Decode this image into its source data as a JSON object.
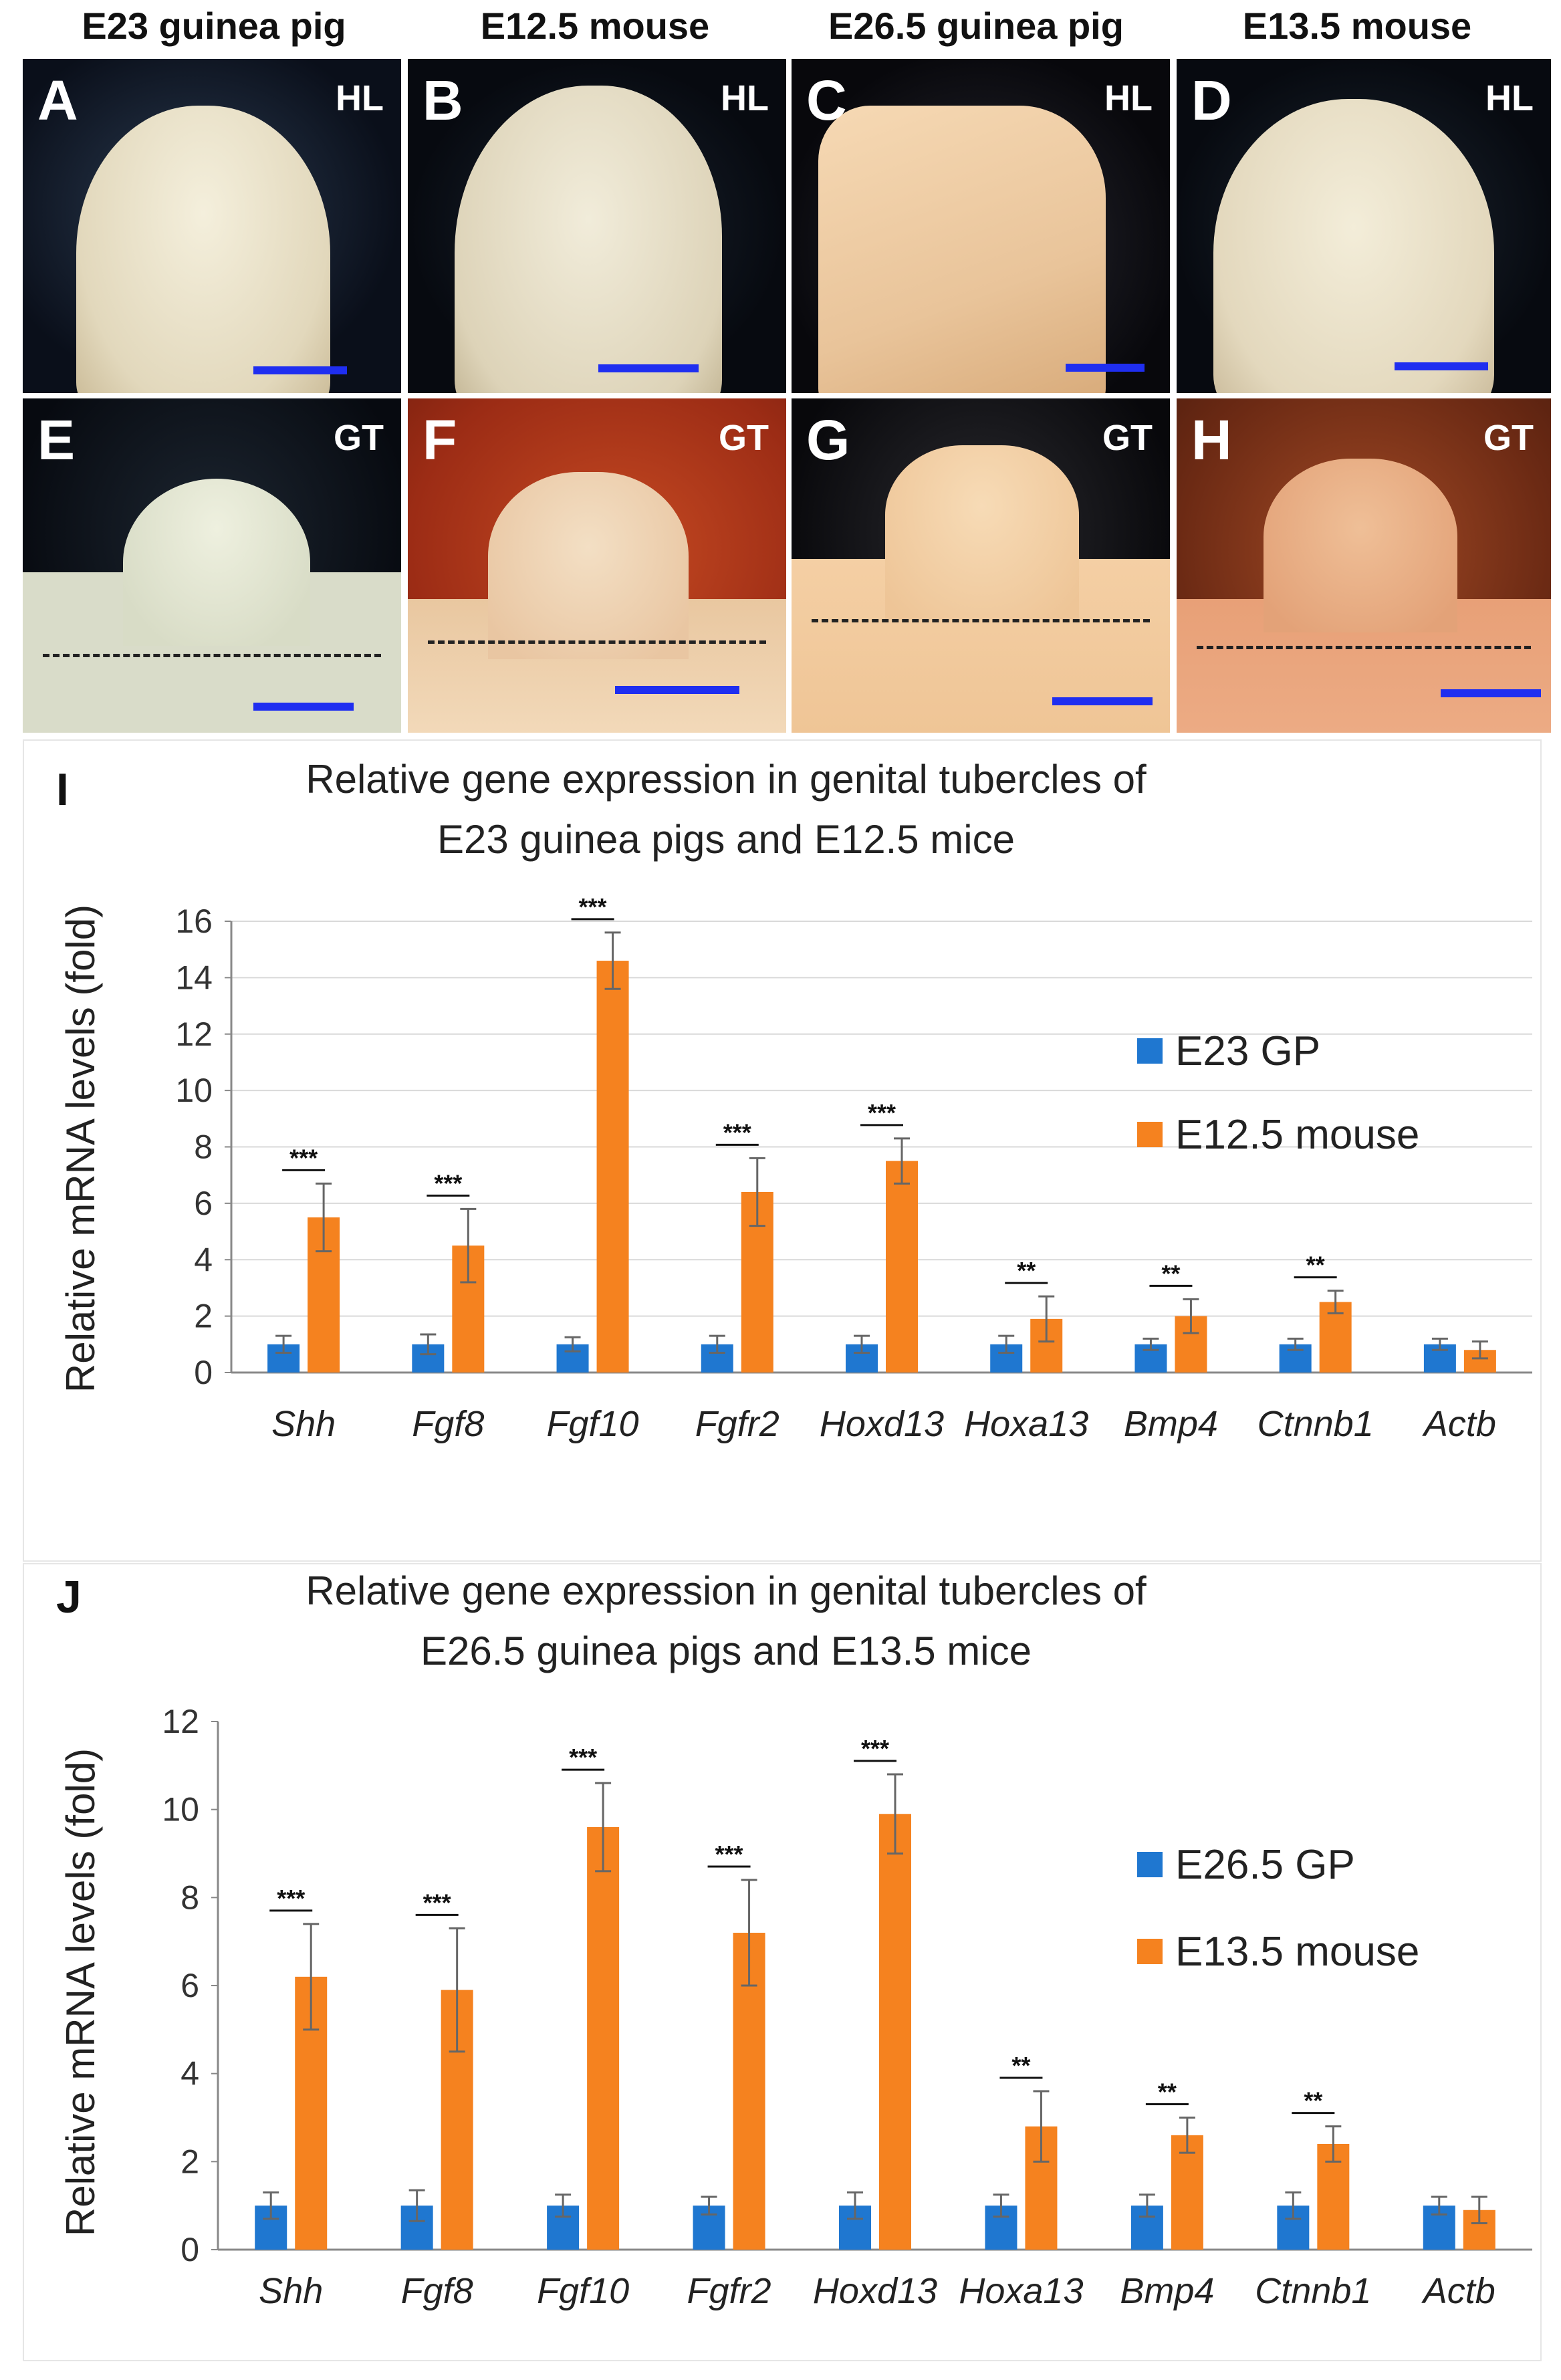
{
  "columns": [
    "E23 guinea pig",
    "E12.5 mouse",
    "E26.5 guinea pig",
    "E13.5 mouse"
  ],
  "panels": [
    {
      "letter": "A",
      "tag": "HL"
    },
    {
      "letter": "B",
      "tag": "HL"
    },
    {
      "letter": "C",
      "tag": "HL"
    },
    {
      "letter": "D",
      "tag": "HL"
    },
    {
      "letter": "E",
      "tag": "GT"
    },
    {
      "letter": "F",
      "tag": "GT"
    },
    {
      "letter": "G",
      "tag": "GT"
    },
    {
      "letter": "H",
      "tag": "GT"
    }
  ],
  "colors": {
    "gp": "#1f77d0",
    "mouse": "#f5821f",
    "scale_bar": "#1f2ef0"
  },
  "chart_data": [
    {
      "type": "bar",
      "panel": "I",
      "title": [
        "Relative gene expression in genital tubercles of",
        "E23 guinea pigs and E12.5 mice"
      ],
      "ylabel": "Relative mRNA levels (fold)",
      "ylim": [
        0,
        16
      ],
      "yticks": [
        0,
        2,
        4,
        6,
        8,
        10,
        12,
        14,
        16
      ],
      "grid": true,
      "legend": "right",
      "categories": [
        "Shh",
        "Fgf8",
        "Fgf10",
        "Fgfr2",
        "Hoxd13",
        "Hoxa13",
        "Bmp4",
        "Ctnnb1",
        "Actb"
      ],
      "series": [
        {
          "name": "E23 GP",
          "values": [
            1,
            1,
            1,
            1,
            1,
            1,
            1,
            1,
            1
          ],
          "errors": [
            0.3,
            0.35,
            0.25,
            0.3,
            0.3,
            0.3,
            0.2,
            0.2,
            0.2
          ]
        },
        {
          "name": "E12.5 mouse",
          "values": [
            5.5,
            4.5,
            14.6,
            6.4,
            7.5,
            1.9,
            2.0,
            2.5,
            0.8
          ],
          "errors": [
            1.2,
            1.3,
            1.0,
            1.2,
            0.8,
            0.8,
            0.6,
            0.4,
            0.3
          ]
        }
      ],
      "significance": [
        "***",
        "***",
        "***",
        "***",
        "***",
        "**",
        "**",
        "**",
        ""
      ]
    },
    {
      "type": "bar",
      "panel": "J",
      "title": [
        "Relative gene expression in genital tubercles of",
        "E26.5 guinea pigs and E13.5 mice"
      ],
      "ylabel": "Relative mRNA  levels (fold)",
      "ylim": [
        0,
        12
      ],
      "yticks": [
        0,
        2,
        4,
        6,
        8,
        10,
        12
      ],
      "grid": false,
      "legend": "right",
      "categories": [
        "Shh",
        "Fgf8",
        "Fgf10",
        "Fgfr2",
        "Hoxd13",
        "Hoxa13",
        "Bmp4",
        "Ctnnb1",
        "Actb"
      ],
      "series": [
        {
          "name": "E26.5 GP",
          "values": [
            1,
            1,
            1,
            1,
            1,
            1,
            1,
            1,
            1
          ],
          "errors": [
            0.3,
            0.35,
            0.25,
            0.2,
            0.3,
            0.25,
            0.25,
            0.3,
            0.2
          ]
        },
        {
          "name": "E13.5 mouse",
          "values": [
            6.2,
            5.9,
            9.6,
            7.2,
            9.9,
            2.8,
            2.6,
            2.4,
            0.9
          ],
          "errors": [
            1.2,
            1.4,
            1.0,
            1.2,
            0.9,
            0.8,
            0.4,
            0.4,
            0.3
          ]
        }
      ],
      "significance": [
        "***",
        "***",
        "***",
        "***",
        "***",
        "**",
        "**",
        "**",
        ""
      ]
    }
  ]
}
